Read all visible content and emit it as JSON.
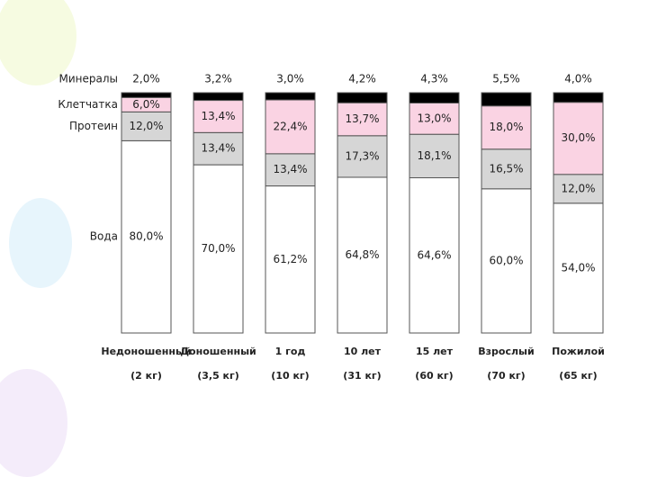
{
  "chart_data": {
    "type": "stacked-bar",
    "categories": [
      [
        "Недоношенный",
        "(2 кг)"
      ],
      [
        "Доношенный",
        "(3,5 кг)"
      ],
      [
        "1 год",
        "(10 кг)"
      ],
      [
        "10 лет",
        "(31 кг)"
      ],
      [
        "15 лет",
        "(60 кг)"
      ],
      [
        "Взрослый",
        "(70 кг)"
      ],
      [
        "Пожилой",
        "(65 кг)"
      ]
    ],
    "ylim": [
      0,
      100
    ],
    "series": [
      {
        "name": "Вода",
        "color": "#ffffff",
        "values": [
          80.0,
          70.0,
          61.2,
          64.8,
          64.6,
          60.0,
          54.0
        ],
        "value_labels": [
          "80,0%",
          "70,0%",
          "61,2%",
          "64,8%",
          "64,6%",
          "60,0%",
          "54,0%"
        ]
      },
      {
        "name": "Протеин",
        "color": "#d6d6d6",
        "values": [
          12.0,
          13.4,
          13.4,
          17.3,
          18.1,
          16.5,
          12.0
        ],
        "value_labels": [
          "12,0%",
          "13,4%",
          "13,4%",
          "17,3%",
          "18,1%",
          "16,5%",
          "12,0%"
        ]
      },
      {
        "name": "Клетчатка",
        "color": "#fad3e3",
        "values": [
          6.0,
          13.4,
          22.4,
          13.7,
          13.0,
          18.0,
          30.0
        ],
        "value_labels": [
          "6,0%",
          "13,4%",
          "22,4%",
          "13,7%",
          "13,0%",
          "18,0%",
          "30,0%"
        ]
      },
      {
        "name": "Минералы",
        "color": "#000000",
        "values": [
          2.0,
          3.2,
          3.0,
          4.2,
          4.3,
          5.5,
          4.0
        ],
        "value_labels": [
          "2,0%",
          "3,2%",
          "3,0%",
          "4,2%",
          "4,3%",
          "5,5%",
          "4,0%"
        ]
      }
    ]
  }
}
